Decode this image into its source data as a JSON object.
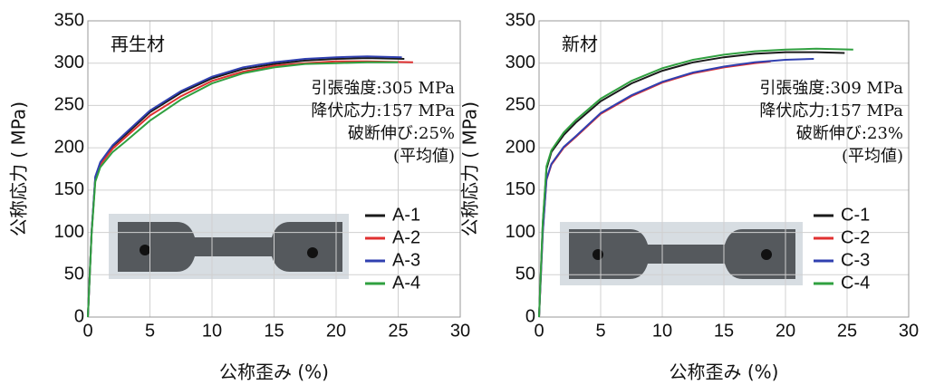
{
  "chart_data": [
    {
      "type": "line",
      "xlabel": "公称歪み (%)",
      "ylabel": "公称応力 ( MPa)",
      "xlim": [
        0,
        30
      ],
      "ylim": [
        0,
        350
      ],
      "xticks": [
        0,
        5,
        10,
        15,
        20,
        25,
        30
      ],
      "yticks": [
        0,
        50,
        100,
        150,
        200,
        250,
        300,
        350
      ],
      "grid": true,
      "annotations": [
        "再生材",
        "引張強度:305 MPa",
        "降伏応力:157 MPa",
        "破断伸び:25%",
        "(平均値)"
      ],
      "legend": "lower right",
      "series": [
        {
          "name": "A-1",
          "color": "#1a1a1a",
          "x": [
            0,
            0.3,
            0.6,
            1,
            2,
            3,
            5,
            7.5,
            10,
            12.5,
            15,
            17.5,
            20,
            22.5,
            25.5
          ],
          "values": [
            0,
            100,
            165,
            182,
            202,
            215,
            242,
            265,
            282,
            293,
            299,
            303,
            305,
            306,
            305
          ]
        },
        {
          "name": "A-2",
          "color": "#e03030",
          "x": [
            0,
            0.3,
            0.6,
            1,
            2,
            3,
            5,
            7.5,
            10,
            12.5,
            15,
            17.5,
            20,
            22.5,
            26.2
          ],
          "values": [
            0,
            100,
            163,
            180,
            199,
            212,
            238,
            261,
            279,
            290,
            297,
            300,
            302,
            302,
            301
          ]
        },
        {
          "name": "A-3",
          "color": "#3040b0",
          "x": [
            0,
            0.3,
            0.6,
            1,
            2,
            3,
            5,
            7.5,
            10,
            12.5,
            15,
            17.5,
            20,
            22.5,
            25.3
          ],
          "values": [
            0,
            100,
            166,
            183,
            203,
            217,
            244,
            267,
            284,
            295,
            301,
            305,
            307,
            308,
            307
          ]
        },
        {
          "name": "A-4",
          "color": "#30a040",
          "x": [
            0,
            0.3,
            0.6,
            1,
            2,
            3,
            5,
            7.5,
            10,
            12.5,
            15,
            17.5,
            20,
            22.5,
            25
          ],
          "values": [
            0,
            98,
            160,
            177,
            195,
            207,
            232,
            257,
            276,
            288,
            295,
            299,
            300,
            301,
            301
          ]
        }
      ]
    },
    {
      "type": "line",
      "xlabel": "公称歪み (%)",
      "ylabel": "公称応力 ( MPa)",
      "xlim": [
        0,
        30
      ],
      "ylim": [
        0,
        350
      ],
      "xticks": [
        0,
        5,
        10,
        15,
        20,
        25,
        30
      ],
      "yticks": [
        0,
        50,
        100,
        150,
        200,
        250,
        300,
        350
      ],
      "grid": true,
      "annotations": [
        "新材",
        "引張強度:309 MPa",
        "降伏応力:157 MPa",
        "破断伸び:23%",
        "(平均値)"
      ],
      "legend": "lower right",
      "series": [
        {
          "name": "C-1",
          "color": "#1a1a1a",
          "x": [
            0,
            0.3,
            0.6,
            1,
            2,
            3,
            5,
            7.5,
            10,
            12.5,
            15,
            17.5,
            20,
            22.5,
            24.8
          ],
          "values": [
            0,
            110,
            175,
            195,
            215,
            230,
            255,
            276,
            291,
            301,
            307,
            311,
            313,
            313,
            312
          ]
        },
        {
          "name": "C-2",
          "color": "#e03030",
          "x": [
            0,
            0.3,
            0.6,
            1,
            2,
            3,
            5,
            7.5,
            10,
            12.5,
            15,
            17.5,
            18.8
          ],
          "values": [
            0,
            100,
            162,
            180,
            200,
            213,
            240,
            261,
            277,
            288,
            295,
            300,
            302
          ]
        },
        {
          "name": "C-3",
          "color": "#3040b0",
          "x": [
            0,
            0.3,
            0.6,
            1,
            2,
            3,
            5,
            7.5,
            10,
            12.5,
            15,
            17.5,
            20,
            22.3
          ],
          "values": [
            0,
            100,
            163,
            181,
            201,
            214,
            241,
            262,
            278,
            289,
            296,
            301,
            304,
            305
          ]
        },
        {
          "name": "C-4",
          "color": "#30a040",
          "x": [
            0,
            0.3,
            0.6,
            1,
            2,
            3,
            5,
            7.5,
            10,
            12.5,
            15,
            17.5,
            20,
            22.5,
            25.5
          ],
          "values": [
            0,
            112,
            178,
            197,
            218,
            233,
            258,
            279,
            294,
            304,
            310,
            314,
            316,
            317,
            316
          ]
        }
      ]
    }
  ]
}
